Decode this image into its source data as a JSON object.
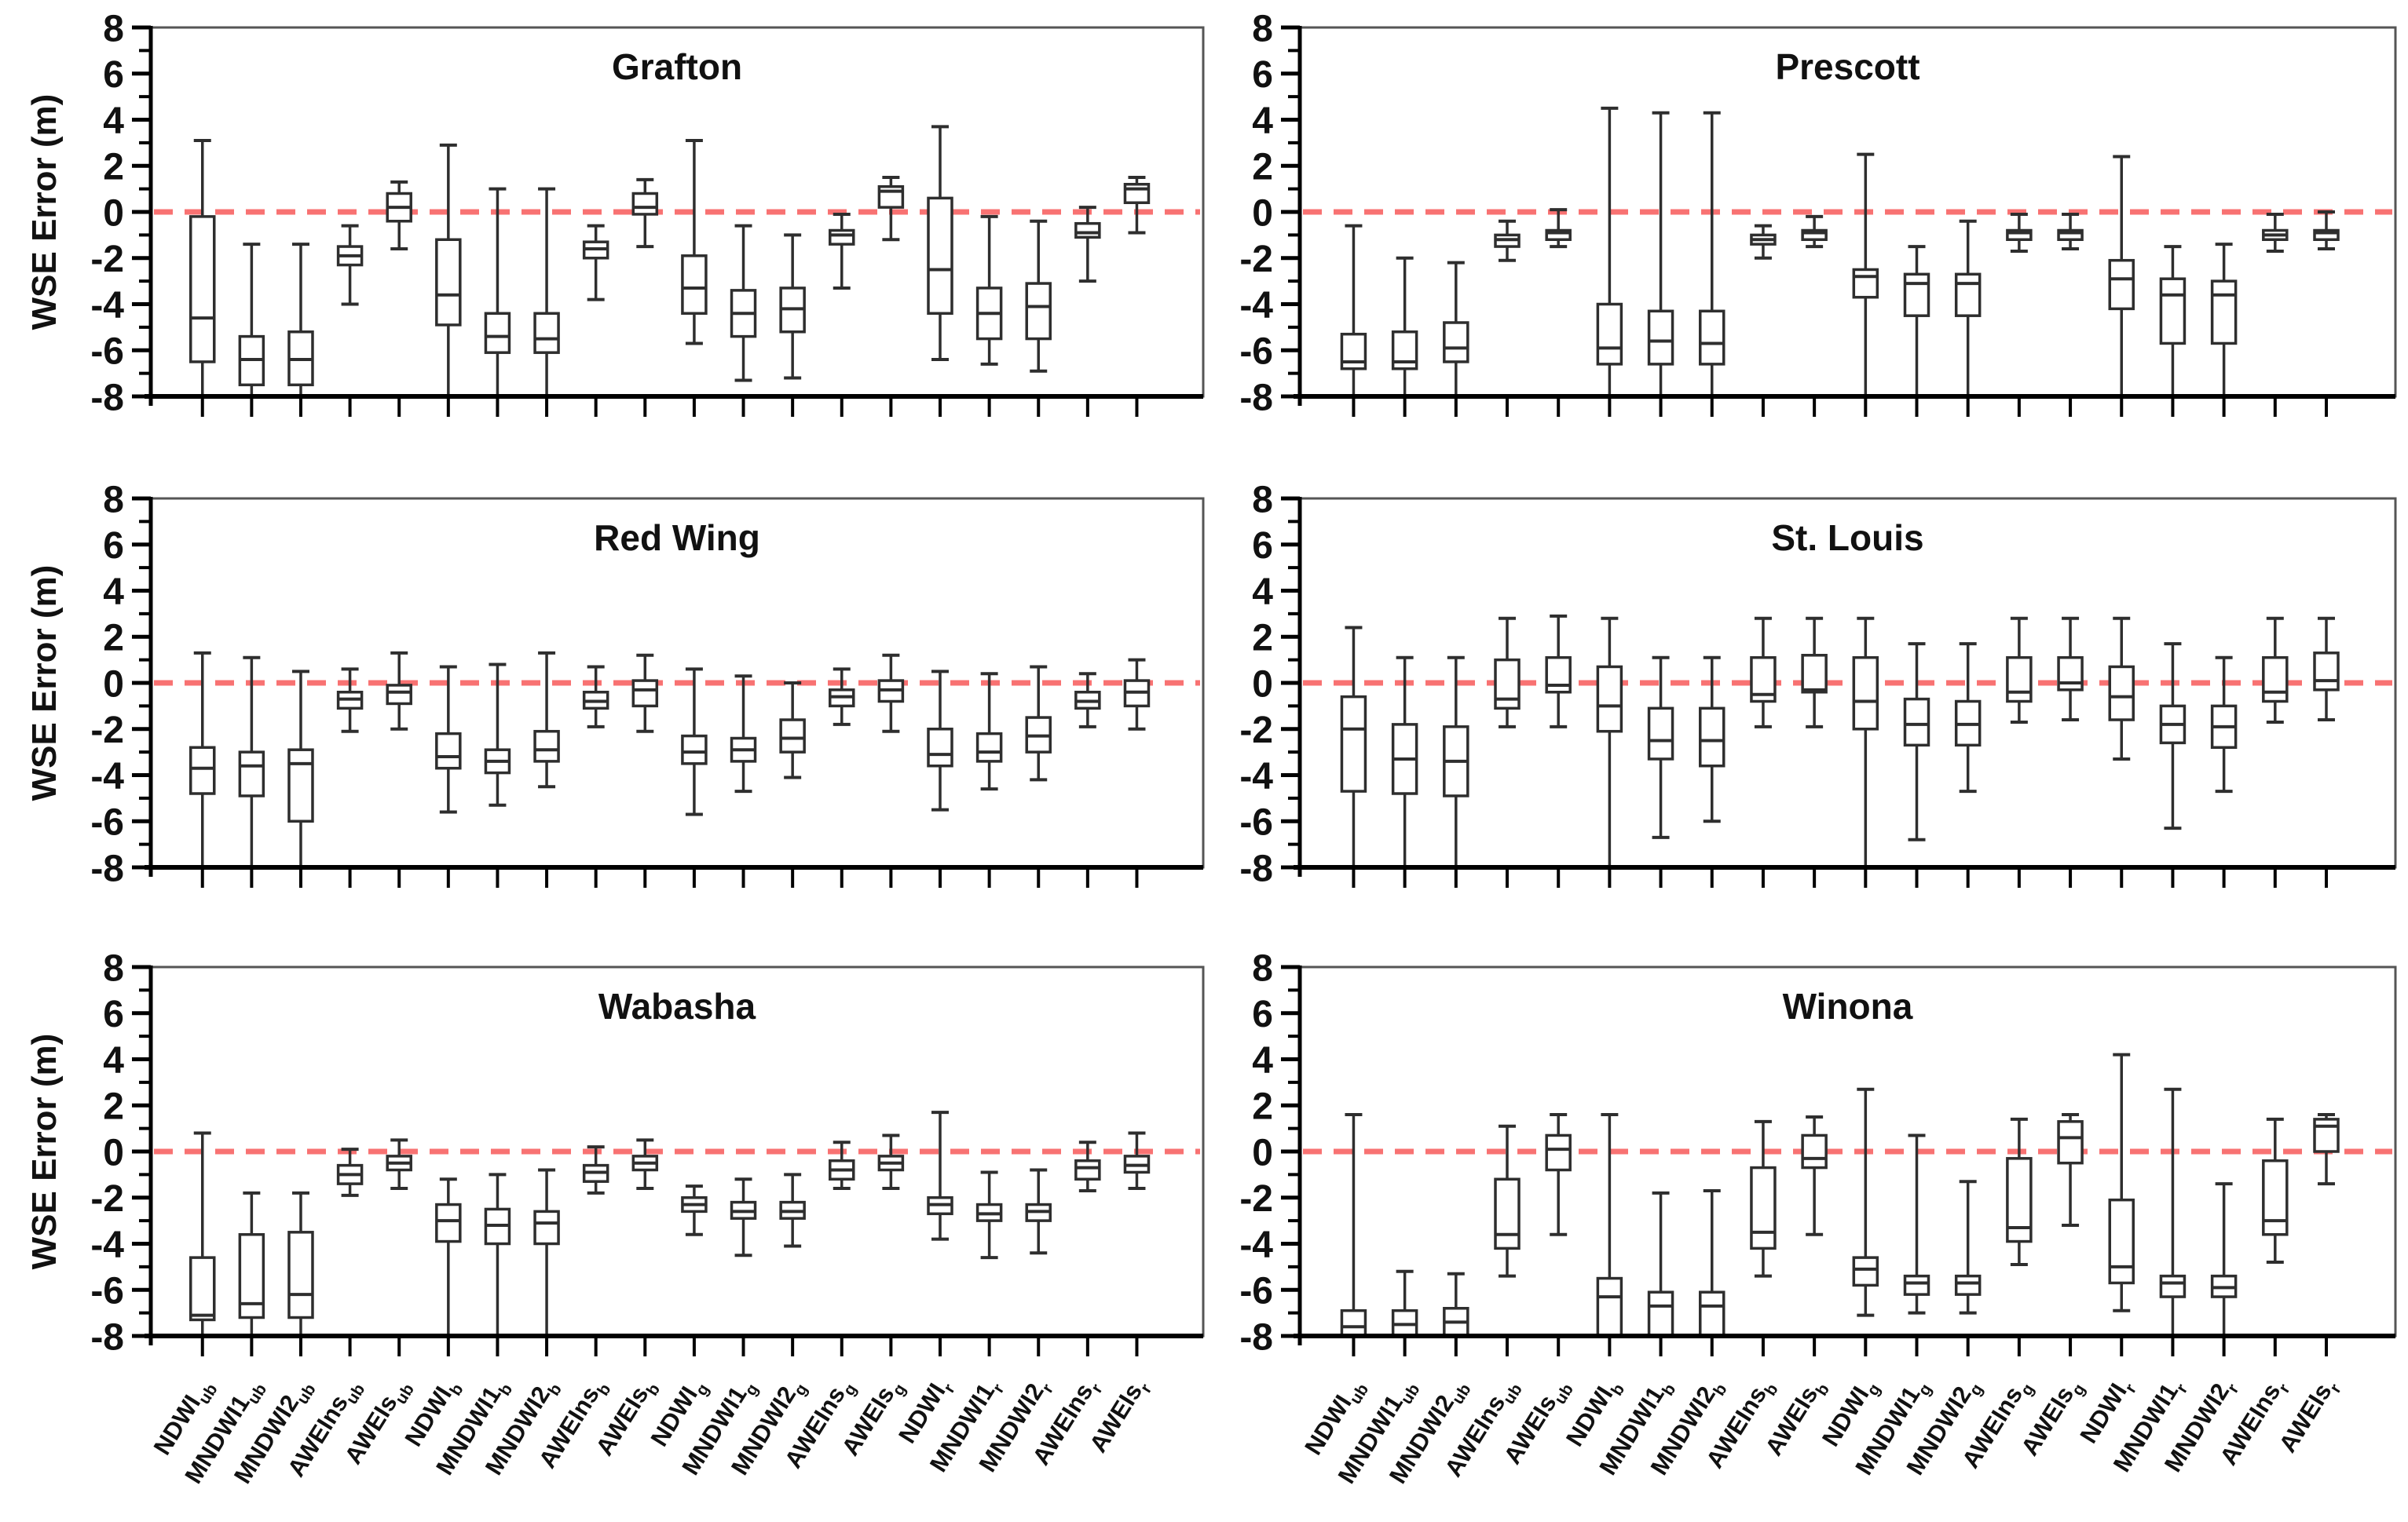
{
  "axes": {
    "ylabel": "WSE Error (m)",
    "ylim": [
      -8,
      8
    ],
    "ytick_major": [
      8,
      6,
      4,
      2,
      0,
      -2,
      -4,
      -6,
      -8
    ],
    "ytick_minor": [
      7,
      5,
      3,
      1,
      -1,
      -3,
      -5,
      -7
    ],
    "zero_line_value": 0,
    "zero_line_color": "#f87272",
    "grid": "off"
  },
  "categories": [
    {
      "base": "NDWI",
      "sub": "ub"
    },
    {
      "base": "MNDWI1",
      "sub": "ub"
    },
    {
      "base": "MNDWI2",
      "sub": "ub"
    },
    {
      "base": "AWEIns",
      "sub": "ub"
    },
    {
      "base": "AWEIs",
      "sub": "ub"
    },
    {
      "base": "NDWI",
      "sub": "b"
    },
    {
      "base": "MNDWI1",
      "sub": "b"
    },
    {
      "base": "MNDWI2",
      "sub": "b"
    },
    {
      "base": "AWEIns",
      "sub": "b"
    },
    {
      "base": "AWEIs",
      "sub": "b"
    },
    {
      "base": "NDWI",
      "sub": "g"
    },
    {
      "base": "MNDWI1",
      "sub": "g"
    },
    {
      "base": "MNDWI2",
      "sub": "g"
    },
    {
      "base": "AWEIns",
      "sub": "g"
    },
    {
      "base": "AWEIs",
      "sub": "g"
    },
    {
      "base": "NDWI",
      "sub": "r"
    },
    {
      "base": "MNDWI1",
      "sub": "r"
    },
    {
      "base": "MNDWI2",
      "sub": "r"
    },
    {
      "base": "AWEIns",
      "sub": "r"
    },
    {
      "base": "AWEIs",
      "sub": "r"
    }
  ],
  "chart_data": [
    {
      "type": "box",
      "title": "Grafton",
      "note": "values are [whisker_low, q1, median, q3, whisker_high]; -8 means clipped at axis bottom",
      "boxes": [
        [
          -8,
          -6.5,
          -4.6,
          -0.2,
          3.1
        ],
        [
          -8,
          -7.5,
          -6.4,
          -5.4,
          -1.4
        ],
        [
          -8,
          -7.5,
          -6.4,
          -5.2,
          -1.4
        ],
        [
          -4.0,
          -2.3,
          -1.9,
          -1.5,
          -0.6
        ],
        [
          -1.6,
          -0.4,
          0.2,
          0.8,
          1.3
        ],
        [
          -8,
          -4.9,
          -3.6,
          -1.2,
          2.9
        ],
        [
          -8,
          -6.1,
          -5.4,
          -4.4,
          1.0
        ],
        [
          -8,
          -6.1,
          -5.5,
          -4.4,
          1.0
        ],
        [
          -3.8,
          -2.0,
          -1.6,
          -1.3,
          -0.6
        ],
        [
          -1.5,
          -0.1,
          0.2,
          0.8,
          1.4
        ],
        [
          -5.7,
          -4.4,
          -3.3,
          -1.9,
          3.1
        ],
        [
          -7.3,
          -5.4,
          -4.4,
          -3.4,
          -0.6
        ],
        [
          -7.2,
          -5.2,
          -4.2,
          -3.3,
          -1.0
        ],
        [
          -3.3,
          -1.4,
          -1.0,
          -0.8,
          -0.1
        ],
        [
          -1.2,
          0.2,
          0.9,
          1.1,
          1.5
        ],
        [
          -6.4,
          -4.4,
          -2.5,
          0.6,
          3.7
        ],
        [
          -6.6,
          -5.5,
          -4.4,
          -3.3,
          -0.2
        ],
        [
          -6.9,
          -5.5,
          -4.1,
          -3.1,
          -0.4
        ],
        [
          -3.0,
          -1.1,
          -0.9,
          -0.5,
          0.2
        ],
        [
          -0.9,
          0.4,
          1.0,
          1.2,
          1.5
        ]
      ]
    },
    {
      "type": "box",
      "title": "Prescott",
      "boxes": [
        [
          -8,
          -6.8,
          -6.5,
          -5.3,
          -0.6
        ],
        [
          -8,
          -6.8,
          -6.5,
          -5.2,
          -2.0
        ],
        [
          -8,
          -6.5,
          -5.9,
          -4.8,
          -2.2
        ],
        [
          -2.1,
          -1.5,
          -1.2,
          -1.0,
          -0.4
        ],
        [
          -1.5,
          -1.2,
          -0.9,
          -0.8,
          0.1
        ],
        [
          -8,
          -6.6,
          -5.9,
          -4.0,
          4.5
        ],
        [
          -8,
          -6.6,
          -5.6,
          -4.3,
          4.3
        ],
        [
          -8,
          -6.6,
          -5.7,
          -4.3,
          4.3
        ],
        [
          -2.0,
          -1.4,
          -1.2,
          -1.0,
          -0.6
        ],
        [
          -1.5,
          -1.2,
          -0.9,
          -0.8,
          -0.2
        ],
        [
          -8,
          -3.7,
          -2.8,
          -2.5,
          2.5
        ],
        [
          -8,
          -4.5,
          -3.1,
          -2.7,
          -1.5
        ],
        [
          -8,
          -4.5,
          -3.1,
          -2.7,
          -0.4
        ],
        [
          -1.7,
          -1.2,
          -0.9,
          -0.8,
          -0.1
        ],
        [
          -1.6,
          -1.2,
          -0.9,
          -0.8,
          -0.1
        ],
        [
          -8,
          -4.2,
          -2.9,
          -2.1,
          2.4
        ],
        [
          -8,
          -5.7,
          -3.6,
          -2.9,
          -1.5
        ],
        [
          -8,
          -5.7,
          -3.6,
          -3.0,
          -1.4
        ],
        [
          -1.7,
          -1.2,
          -1.0,
          -0.8,
          -0.1
        ],
        [
          -1.6,
          -1.2,
          -0.9,
          -0.8,
          0.0
        ]
      ]
    },
    {
      "type": "box",
      "title": "Red Wing",
      "boxes": [
        [
          -8,
          -4.8,
          -3.7,
          -2.8,
          1.3
        ],
        [
          -8,
          -4.9,
          -3.6,
          -3.0,
          1.1
        ],
        [
          -8,
          -6.0,
          -3.5,
          -2.9,
          0.5
        ],
        [
          -2.1,
          -1.1,
          -0.7,
          -0.4,
          0.6
        ],
        [
          -2.0,
          -0.9,
          -0.4,
          -0.1,
          1.3
        ],
        [
          -5.6,
          -3.7,
          -3.2,
          -2.2,
          0.7
        ],
        [
          -5.3,
          -3.9,
          -3.4,
          -2.9,
          0.8
        ],
        [
          -4.5,
          -3.4,
          -2.9,
          -2.1,
          1.3
        ],
        [
          -1.9,
          -1.1,
          -0.8,
          -0.4,
          0.7
        ],
        [
          -2.1,
          -1.0,
          -0.3,
          0.1,
          1.2
        ],
        [
          -5.7,
          -3.5,
          -3.0,
          -2.3,
          0.6
        ],
        [
          -4.7,
          -3.4,
          -2.9,
          -2.4,
          0.3
        ],
        [
          -4.1,
          -3.0,
          -2.4,
          -1.6,
          0.0
        ],
        [
          -1.8,
          -1.0,
          -0.6,
          -0.3,
          0.6
        ],
        [
          -2.1,
          -0.8,
          -0.3,
          0.1,
          1.2
        ],
        [
          -5.5,
          -3.6,
          -3.1,
          -2.0,
          0.5
        ],
        [
          -4.6,
          -3.4,
          -3.0,
          -2.2,
          0.4
        ],
        [
          -4.2,
          -3.0,
          -2.3,
          -1.5,
          0.7
        ],
        [
          -1.9,
          -1.1,
          -0.8,
          -0.4,
          0.4
        ],
        [
          -2.0,
          -1.0,
          -0.4,
          0.1,
          1.0
        ]
      ]
    },
    {
      "type": "box",
      "title": "St. Louis",
      "boxes": [
        [
          -8,
          -4.7,
          -2.0,
          -0.6,
          2.4
        ],
        [
          -8,
          -4.8,
          -3.3,
          -1.8,
          1.1
        ],
        [
          -8,
          -4.9,
          -3.4,
          -1.9,
          1.1
        ],
        [
          -1.9,
          -1.1,
          -0.7,
          1.0,
          2.8
        ],
        [
          -1.9,
          -0.4,
          -0.1,
          1.1,
          2.9
        ],
        [
          -8,
          -2.1,
          -1.0,
          0.7,
          2.8
        ],
        [
          -6.7,
          -3.3,
          -2.5,
          -1.1,
          1.1
        ],
        [
          -6.0,
          -3.6,
          -2.5,
          -1.1,
          1.1
        ],
        [
          -1.9,
          -0.8,
          -0.5,
          1.1,
          2.8
        ],
        [
          -1.9,
          -0.4,
          -0.3,
          1.2,
          2.8
        ],
        [
          -8,
          -2.0,
          -0.8,
          1.1,
          2.8
        ],
        [
          -6.8,
          -2.7,
          -1.8,
          -0.7,
          1.7
        ],
        [
          -4.7,
          -2.7,
          -1.8,
          -0.8,
          1.7
        ],
        [
          -1.7,
          -0.8,
          -0.4,
          1.1,
          2.8
        ],
        [
          -1.6,
          -0.3,
          0.0,
          1.1,
          2.8
        ],
        [
          -3.3,
          -1.6,
          -0.6,
          0.7,
          2.8
        ],
        [
          -6.3,
          -2.6,
          -1.8,
          -1.0,
          1.7
        ],
        [
          -4.7,
          -2.8,
          -1.9,
          -1.0,
          1.1
        ],
        [
          -1.7,
          -0.8,
          -0.4,
          1.1,
          2.8
        ],
        [
          -1.6,
          -0.3,
          0.1,
          1.3,
          2.8
        ]
      ]
    },
    {
      "type": "box",
      "title": "Wabasha",
      "boxes": [
        [
          -8,
          -7.3,
          -7.1,
          -4.6,
          0.8
        ],
        [
          -8,
          -7.2,
          -6.6,
          -3.6,
          -1.8
        ],
        [
          -8,
          -7.2,
          -6.2,
          -3.5,
          -1.8
        ],
        [
          -1.9,
          -1.4,
          -1.0,
          -0.6,
          0.1
        ],
        [
          -1.6,
          -0.8,
          -0.5,
          -0.2,
          0.5
        ],
        [
          -8,
          -3.9,
          -3.0,
          -2.3,
          -1.2
        ],
        [
          -8,
          -4.0,
          -3.2,
          -2.5,
          -1.0
        ],
        [
          -8,
          -4.0,
          -3.1,
          -2.6,
          -0.8
        ],
        [
          -1.8,
          -1.3,
          -0.9,
          -0.6,
          0.2
        ],
        [
          -1.6,
          -0.8,
          -0.5,
          -0.2,
          0.5
        ],
        [
          -3.6,
          -2.6,
          -2.3,
          -2.0,
          -1.5
        ],
        [
          -4.5,
          -2.9,
          -2.6,
          -2.2,
          -1.2
        ],
        [
          -4.1,
          -2.9,
          -2.6,
          -2.2,
          -1.0
        ],
        [
          -1.6,
          -1.2,
          -0.8,
          -0.4,
          0.4
        ],
        [
          -1.6,
          -0.8,
          -0.5,
          -0.2,
          0.7
        ],
        [
          -3.8,
          -2.7,
          -2.3,
          -2.0,
          1.7
        ],
        [
          -4.6,
          -3.0,
          -2.7,
          -2.3,
          -0.9
        ],
        [
          -4.4,
          -3.0,
          -2.6,
          -2.3,
          -0.8
        ],
        [
          -1.7,
          -1.2,
          -0.7,
          -0.4,
          0.4
        ],
        [
          -1.6,
          -0.9,
          -0.6,
          -0.2,
          0.8
        ]
      ]
    },
    {
      "type": "box",
      "title": "Winona",
      "boxes": [
        [
          -8,
          -8,
          -7.6,
          -6.9,
          1.6
        ],
        [
          -8,
          -8,
          -7.5,
          -6.9,
          -5.2
        ],
        [
          -8,
          -8,
          -7.4,
          -6.8,
          -5.3
        ],
        [
          -5.4,
          -4.2,
          -3.6,
          -1.2,
          1.1
        ],
        [
          -3.6,
          -0.8,
          0.1,
          0.7,
          1.6
        ],
        [
          -8,
          -8,
          -6.3,
          -5.5,
          1.6
        ],
        [
          -8,
          -8,
          -6.7,
          -6.1,
          -1.8
        ],
        [
          -8,
          -8,
          -6.7,
          -6.1,
          -1.7
        ],
        [
          -5.4,
          -4.2,
          -3.5,
          -0.7,
          1.3
        ],
        [
          -3.6,
          -0.7,
          -0.3,
          0.7,
          1.5
        ],
        [
          -7.1,
          -5.8,
          -5.1,
          -4.6,
          2.7
        ],
        [
          -7.0,
          -6.2,
          -5.7,
          -5.4,
          0.7
        ],
        [
          -7.0,
          -6.2,
          -5.7,
          -5.4,
          -1.3
        ],
        [
          -4.9,
          -3.9,
          -3.3,
          -0.3,
          1.4
        ],
        [
          -3.2,
          -0.5,
          0.6,
          1.3,
          1.6
        ],
        [
          -6.9,
          -5.7,
          -5.0,
          -2.1,
          4.2
        ],
        [
          -8,
          -6.3,
          -5.7,
          -5.4,
          2.7
        ],
        [
          -8,
          -6.3,
          -5.9,
          -5.4,
          -1.4
        ],
        [
          -4.8,
          -3.6,
          -3.0,
          -0.4,
          1.4
        ],
        [
          -1.4,
          0.0,
          1.1,
          1.4,
          1.6
        ]
      ]
    }
  ]
}
